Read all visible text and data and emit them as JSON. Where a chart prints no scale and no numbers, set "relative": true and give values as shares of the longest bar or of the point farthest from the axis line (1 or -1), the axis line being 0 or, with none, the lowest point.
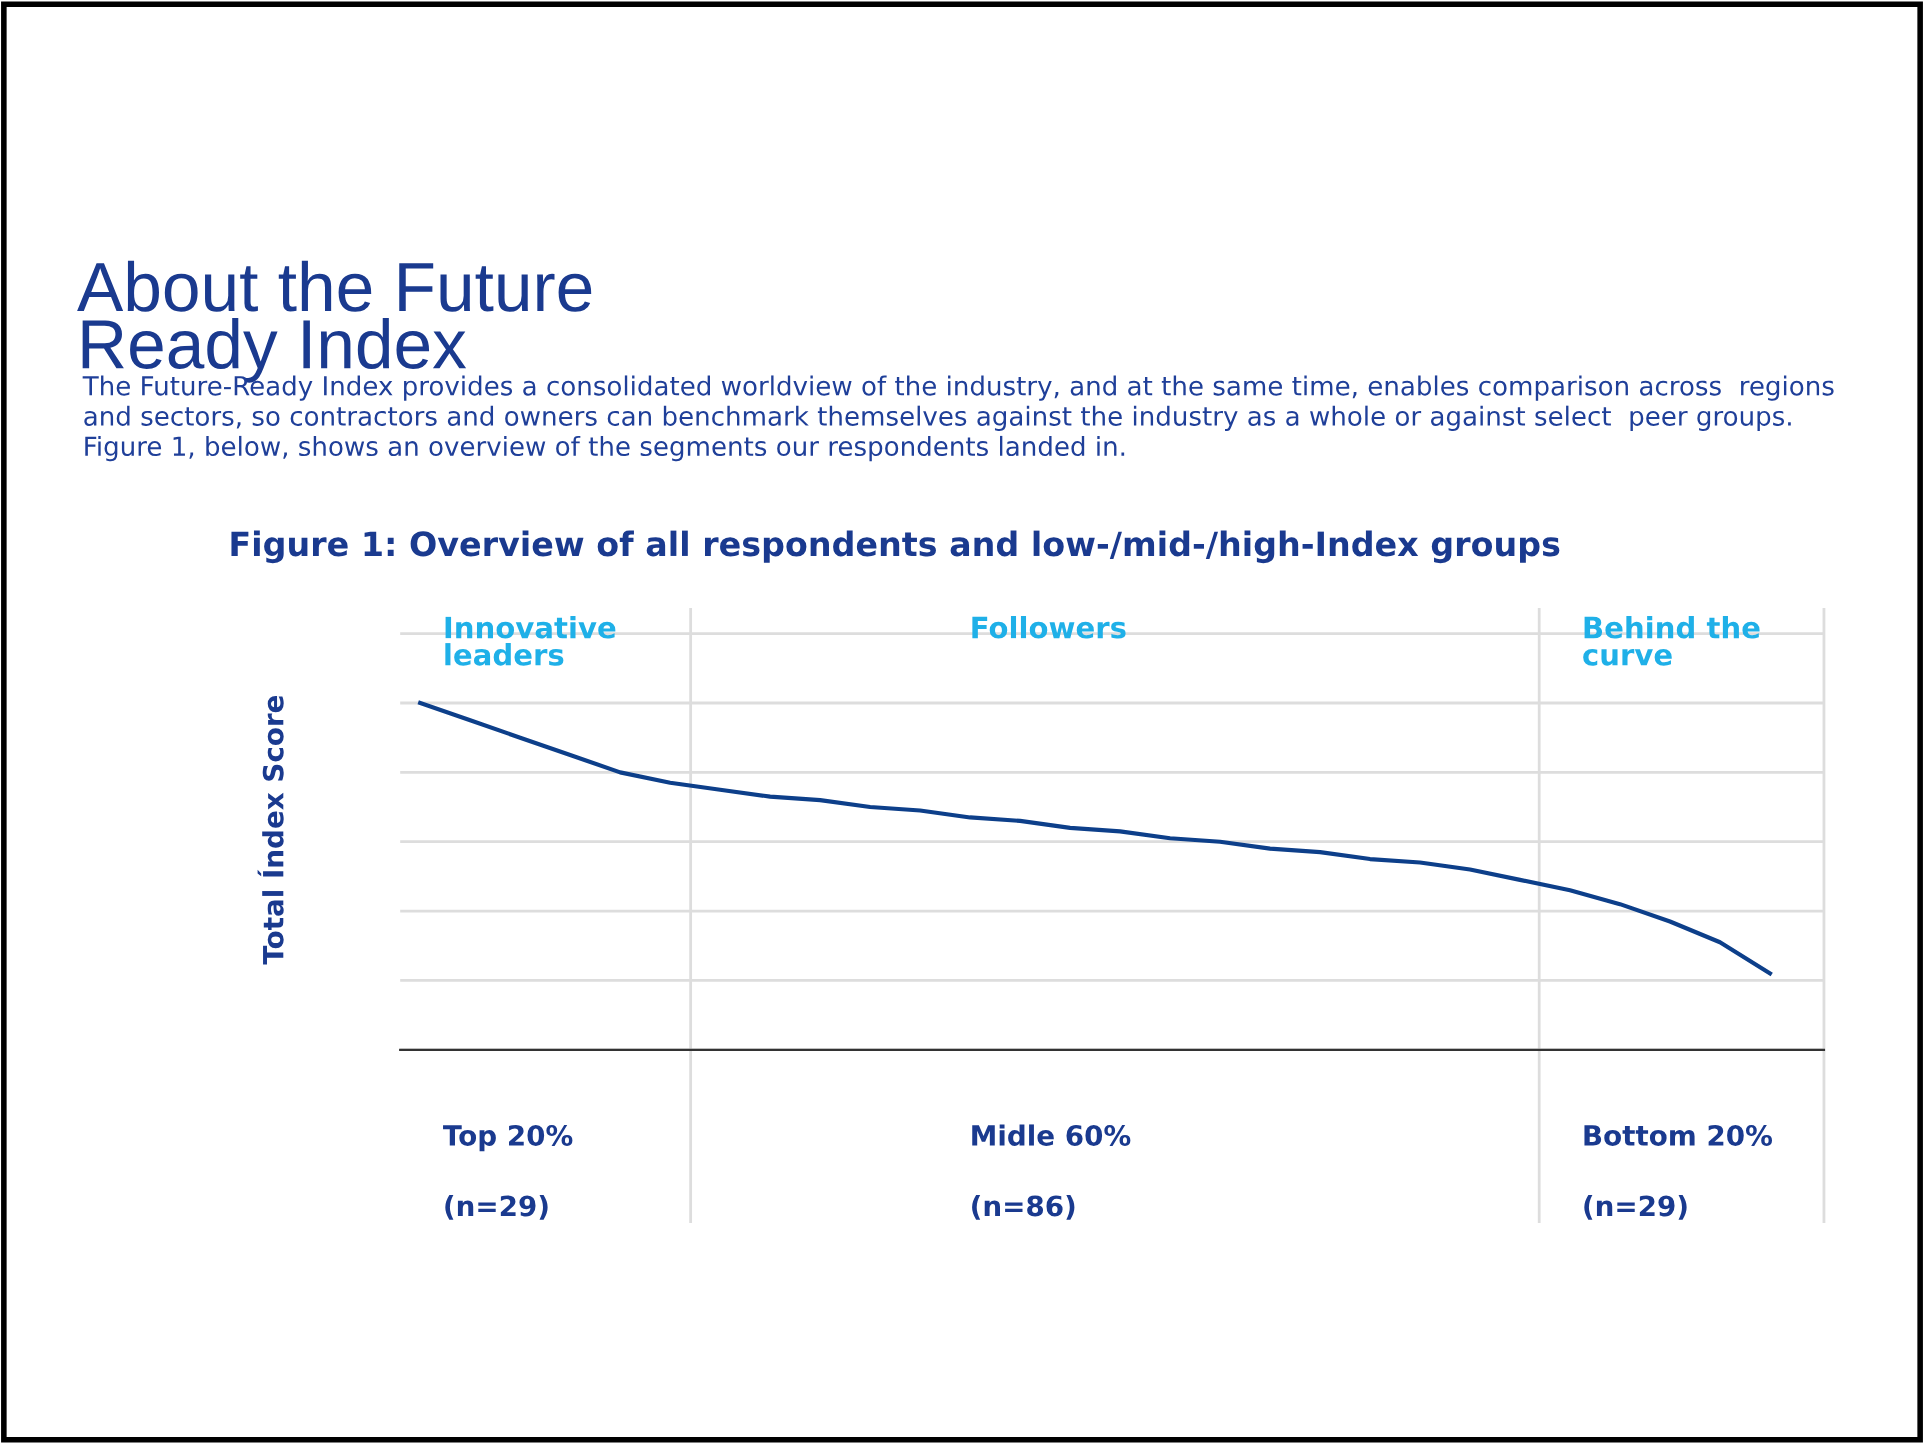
{
  "chart_data": {
    "type": "line",
    "title": "About the Future\nReady Index",
    "subtitle": "The Future-Ready Index provides a consolidated worldview of the industry, and at the same time, enables comparison across  regions\nand sectors, so contractors and owners can benchmark themselves against the industry as a whole or against select  peer groups.\nFigure 1, below, shows an overview of the segments our respondents landed in.",
    "ylabel": "Total Índex Score",
    "relative": true,
    "grid": "y",
    "categories": [
      null,
      null,
      null,
      null,
      null,
      null,
      null,
      null,
      null,
      null,
      null,
      null,
      null,
      null,
      null,
      null,
      null,
      null,
      null,
      null,
      null,
      null,
      null,
      null,
      null,
      null,
      null,
      null
    ],
    "series": [
      {
        "color": "#0d3f8a",
        "values": [
          1.0,
          0.95,
          0.9,
          0.85,
          0.8,
          0.77,
          0.75,
          0.73,
          0.72,
          0.7,
          0.69,
          0.67,
          0.66,
          0.64,
          0.63,
          0.61,
          0.6,
          0.58,
          0.57,
          0.55,
          0.54,
          0.52,
          0.49,
          0.46,
          0.42,
          0.37,
          0.31,
          0.22
        ]
      }
    ],
    "annotations": [
      "Figure 1: Overview of all respondents and low-/mid-/high-Index groups",
      "Innovative\nleaders",
      "Followers",
      "Behind the\ncurve",
      "Top 20%",
      "(n=29)",
      "Midle 60%",
      "(n=86)",
      "Bottom 20%",
      "(n=29)"
    ]
  }
}
